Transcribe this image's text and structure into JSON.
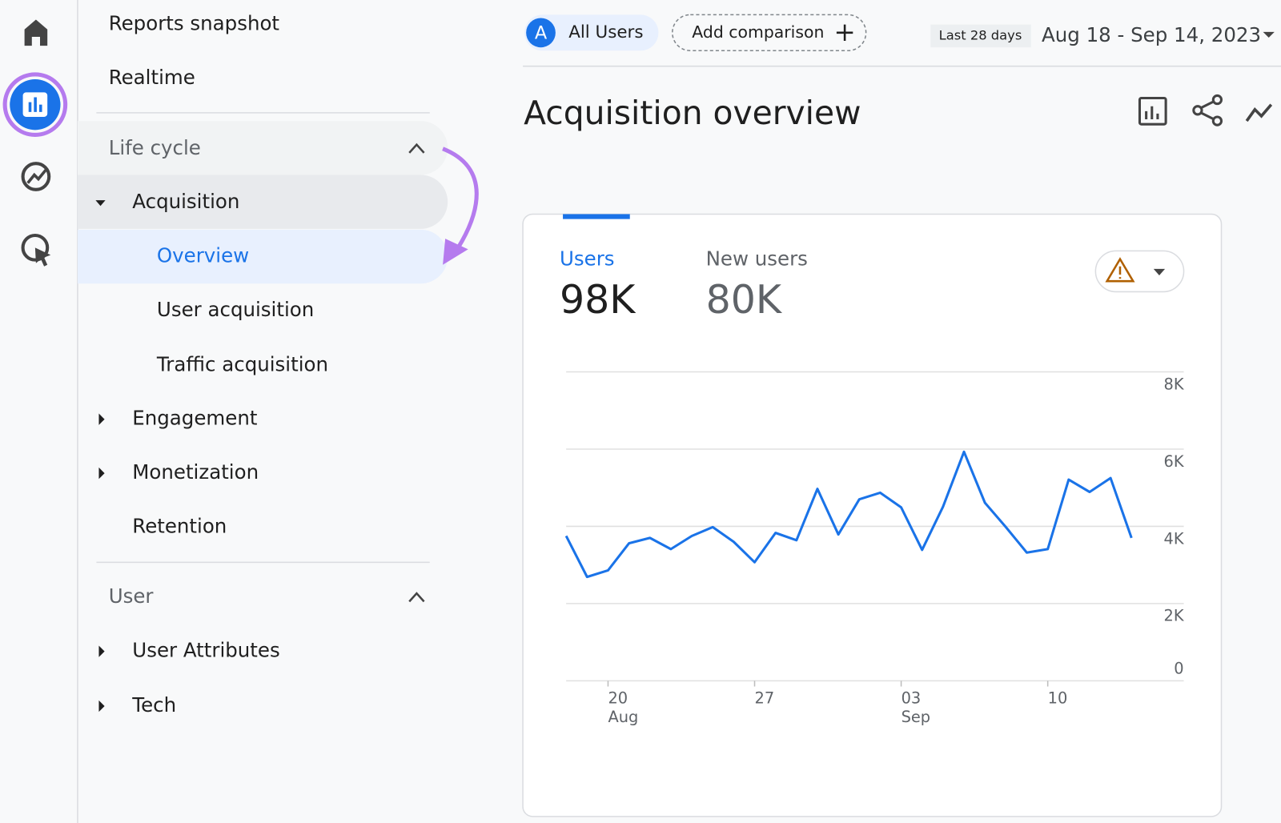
{
  "nav": {
    "items": [
      "Reports snapshot",
      "Realtime"
    ],
    "sections": [
      {
        "title": "Life cycle",
        "items": [
          {
            "label": "Acquisition",
            "children": [
              "Overview",
              "User acquisition",
              "Traffic acquisition"
            ]
          },
          {
            "label": "Engagement"
          },
          {
            "label": "Monetization"
          },
          {
            "label": "Retention"
          }
        ]
      },
      {
        "title": "User",
        "items": [
          {
            "label": "User Attributes"
          },
          {
            "label": "Tech"
          }
        ]
      }
    ]
  },
  "header": {
    "segment_badge": "A",
    "segment": "All Users",
    "add_comparison": "Add comparison",
    "date_preset": "Last 28 days",
    "date_range": "Aug 18 - Sep 14, 2023"
  },
  "page_title": "Acquisition overview",
  "card": {
    "metrics": [
      {
        "label": "Users",
        "value": "98K"
      },
      {
        "label": "New users",
        "value": "80K"
      }
    ]
  },
  "chart_data": {
    "type": "line",
    "color": "#1a73e8",
    "categories": [
      null,
      null,
      "20",
      null,
      null,
      null,
      null,
      null,
      null,
      "27",
      null,
      null,
      null,
      null,
      null,
      null,
      "03",
      null,
      null,
      null,
      null,
      null,
      null,
      "10",
      null,
      null,
      null,
      null
    ],
    "category_months": [
      null,
      null,
      "Aug",
      null,
      null,
      null,
      null,
      null,
      null,
      null,
      null,
      null,
      null,
      null,
      null,
      null,
      "Sep",
      null,
      null,
      null,
      null,
      null,
      null,
      null,
      null,
      null,
      null,
      null
    ],
    "values": [
      3750,
      2690,
      2860,
      3560,
      3700,
      3410,
      3750,
      3980,
      3600,
      3070,
      3830,
      3640,
      4970,
      3790,
      4700,
      4870,
      4490,
      3390,
      4510,
      5930,
      4610,
      3980,
      3320,
      3410,
      5210,
      4890,
      5250,
      3700
    ],
    "ylim": [
      0,
      8000
    ],
    "yticks": [
      0,
      {
        "value": 2000,
        "label": "2K"
      },
      {
        "value": 4000,
        "label": "4K"
      },
      {
        "value": 6000,
        "label": "6K"
      },
      {
        "value": 8000,
        "label": "8K"
      }
    ],
    "grid": true
  }
}
